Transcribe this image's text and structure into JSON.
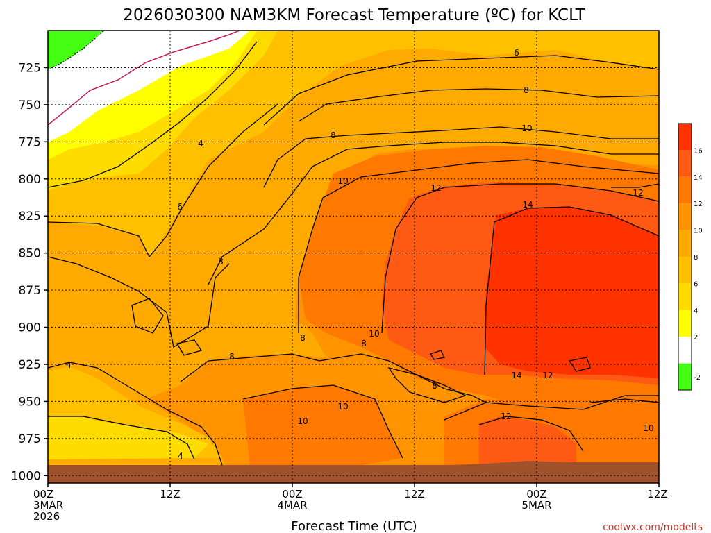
{
  "chart_data": {
    "type": "heatmap",
    "title": "2026030300 NAM3KM Forecast Temperature (ºC) for KCLT",
    "xlabel": "Forecast Time (UTC)",
    "ylabel": "",
    "y_ticks": [
      "725",
      "750",
      "775",
      "800",
      "825",
      "850",
      "875",
      "900",
      "925",
      "950",
      "975",
      "1000"
    ],
    "x_ticks": [
      {
        "line1": "00Z",
        "line2": "3MAR",
        "line3": "2026"
      },
      {
        "line1": "12Z",
        "line2": "",
        "line3": ""
      },
      {
        "line1": "00Z",
        "line2": "4MAR",
        "line3": ""
      },
      {
        "line1": "12Z",
        "line2": "",
        "line3": ""
      },
      {
        "line1": "00Z",
        "line2": "5MAR",
        "line3": ""
      },
      {
        "line1": "12Z",
        "line2": "",
        "line3": ""
      }
    ],
    "ylim": [
      1005,
      700
    ],
    "legend": {
      "placement": "right",
      "labels": [
        "16",
        "14",
        "12",
        "10",
        "8",
        "6",
        "4",
        "2",
        "-2"
      ],
      "colors": [
        "#ff3300",
        "#ff5a14",
        "#ff7800",
        "#ff9400",
        "#ffaa00",
        "#ffc000",
        "#ffdc00",
        "#ffff00",
        "#ffffff",
        "#44ff14"
      ]
    },
    "contour_labels": [
      "6",
      "8",
      "10",
      "12",
      "4",
      "8",
      "10",
      "12",
      "14",
      "6",
      "8",
      "8",
      "4",
      "8",
      "8",
      "10",
      "10",
      "8",
      "14",
      "12",
      "10",
      "10",
      "12",
      "10",
      "4"
    ],
    "ground_color": "#a0522d"
  },
  "credit": "coolwx.com/modelts"
}
